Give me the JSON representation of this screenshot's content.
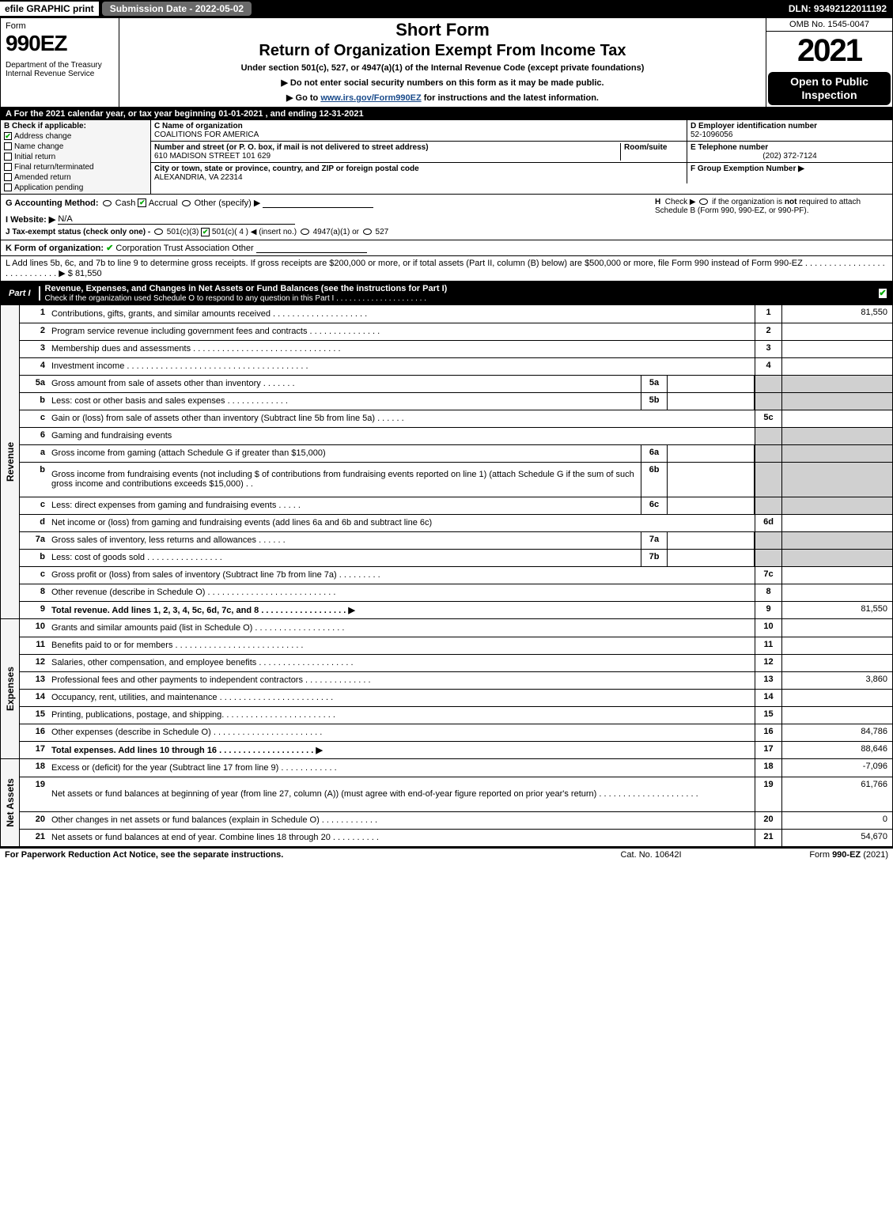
{
  "topbar": {
    "efile": "efile GRAPHIC print",
    "subdate": "Submission Date - 2022-05-02",
    "dln": "DLN: 93492122011192"
  },
  "header": {
    "form_label": "Form",
    "form_num": "990EZ",
    "dept": "Department of the Treasury\nInternal Revenue Service",
    "shortform": "Short Form",
    "title2": "Return of Organization Exempt From Income Tax",
    "subtitle": "Under section 501(c), 527, or 4947(a)(1) of the Internal Revenue Code (except private foundations)",
    "arrow1": "▶ Do not enter social security numbers on this form as it may be made public.",
    "arrow2_pre": "▶ Go to ",
    "arrow2_link": "www.irs.gov/Form990EZ",
    "arrow2_post": " for instructions and the latest information.",
    "omb": "OMB No. 1545-0047",
    "year": "2021",
    "open": "Open to Public Inspection"
  },
  "row_a": "A  For the 2021 calendar year, or tax year beginning 01-01-2021 , and ending 12-31-2021",
  "col_b": {
    "head": "B  Check if applicable:",
    "items": [
      "Address change",
      "Name change",
      "Initial return",
      "Final return/terminated",
      "Amended return",
      "Application pending"
    ],
    "checked_idx": 0
  },
  "col_c": {
    "name_lab": "C Name of organization",
    "name": "COALITIONS FOR AMERICA",
    "addr_lab": "Number and street (or P. O. box, if mail is not delivered to street address)",
    "room_lab": "Room/suite",
    "addr": "610 MADISON STREET 101 629",
    "city_lab": "City or town, state or province, country, and ZIP or foreign postal code",
    "city": "ALEXANDRIA, VA  22314"
  },
  "col_de": {
    "d_lab": "D Employer identification number",
    "d_val": "52-1096056",
    "e_lab": "E Telephone number",
    "e_val": "(202) 372-7124",
    "f_lab": "F Group Exemption Number  ▶"
  },
  "row_g": {
    "g_lab": "G Accounting Method:",
    "g_opts": [
      "Cash",
      "Accrual",
      "Other (specify) ▶"
    ],
    "g_checked": 1,
    "h_text": "H  Check ▶       if the organization is not required to attach Schedule B (Form 990, 990-EZ, or 990-PF)."
  },
  "row_i": {
    "lab": "I Website: ▶",
    "val": "N/A"
  },
  "row_j": {
    "lab": "J Tax-exempt status (check only one) - ",
    "opts": [
      "501(c)(3)",
      "501(c)( 4 ) ◀ (insert no.)",
      "4947(a)(1) or",
      "527"
    ],
    "checked": 1
  },
  "row_k": {
    "lab": "K Form of organization:",
    "opts": [
      "Corporation",
      "Trust",
      "Association",
      "Other"
    ],
    "checked": 0
  },
  "row_l": {
    "text": "L Add lines 5b, 6c, and 7b to line 9 to determine gross receipts. If gross receipts are $200,000 or more, or if total assets (Part II, column (B) below) are $500,000 or more, file Form 990 instead of Form 990-EZ  . . . . . . . . . . . . . . . . . . . . . . . . . . . .  ▶ $",
    "val": "81,550"
  },
  "part1": {
    "tab": "Part I",
    "title": "Revenue, Expenses, and Changes in Net Assets or Fund Balances (see the instructions for Part I)",
    "sub": "Check if the organization used Schedule O to respond to any question in this Part I . . . . . . . . . . . . . . . . . . . . .",
    "checked": true
  },
  "side_labels": {
    "rev": "Revenue",
    "exp": "Expenses",
    "net": "Net Assets"
  },
  "revenue_lines": [
    {
      "n": "1",
      "t": "Contributions, gifts, grants, and similar amounts received . . . . . . . . . . . . . . . . . . . .",
      "rn": "1",
      "rv": "81,550"
    },
    {
      "n": "2",
      "t": "Program service revenue including government fees and contracts . . . . . . . . . . . . . . .",
      "rn": "2",
      "rv": ""
    },
    {
      "n": "3",
      "t": "Membership dues and assessments . . . . . . . . . . . . . . . . . . . . . . . . . . . . . . .",
      "rn": "3",
      "rv": ""
    },
    {
      "n": "4",
      "t": "Investment income . . . . . . . . . . . . . . . . . . . . . . . . . . . . . . . . . . . . . .",
      "rn": "4",
      "rv": ""
    },
    {
      "n": "5a",
      "t": "Gross amount from sale of assets other than inventory . . . . . . .",
      "sn": "5a",
      "sv": "",
      "shaded": true
    },
    {
      "n": "b",
      "t": "Less: cost or other basis and sales expenses . . . . . . . . . . . . .",
      "sn": "5b",
      "sv": "",
      "shaded": true
    },
    {
      "n": "c",
      "t": "Gain or (loss) from sale of assets other than inventory (Subtract line 5b from line 5a) . . . . . .",
      "rn": "5c",
      "rv": ""
    },
    {
      "n": "6",
      "t": "Gaming and fundraising events",
      "shaded": true,
      "nohr": true
    },
    {
      "n": "a",
      "t": "Gross income from gaming (attach Schedule G if greater than $15,000)",
      "sn": "6a",
      "sv": "",
      "shaded": true
    },
    {
      "n": "b",
      "t": "Gross income from fundraising events (not including $                    of contributions from fundraising events reported on line 1) (attach Schedule G if the sum of such gross income and contributions exceeds $15,000)   . .",
      "sn": "6b",
      "sv": "",
      "shaded": true,
      "tall": true
    },
    {
      "n": "c",
      "t": "Less: direct expenses from gaming and fundraising events  . . . . .",
      "sn": "6c",
      "sv": "",
      "shaded": true
    },
    {
      "n": "d",
      "t": "Net income or (loss) from gaming and fundraising events (add lines 6a and 6b and subtract line 6c)",
      "rn": "6d",
      "rv": ""
    },
    {
      "n": "7a",
      "t": "Gross sales of inventory, less returns and allowances . . . . . .",
      "sn": "7a",
      "sv": "",
      "shaded": true
    },
    {
      "n": "b",
      "t": "Less: cost of goods sold        . . . . . . . . . . . . . . . .",
      "sn": "7b",
      "sv": "",
      "shaded": true
    },
    {
      "n": "c",
      "t": "Gross profit or (loss) from sales of inventory (Subtract line 7b from line 7a) . . . . . . . . .",
      "rn": "7c",
      "rv": ""
    },
    {
      "n": "8",
      "t": "Other revenue (describe in Schedule O) . . . . . . . . . . . . . . . . . . . . . . . . . . .",
      "rn": "8",
      "rv": ""
    },
    {
      "n": "9",
      "t": "Total revenue. Add lines 1, 2, 3, 4, 5c, 6d, 7c, and 8  . . . . . . . . . . . . . . . . . .   ▶",
      "rn": "9",
      "rv": "81,550",
      "bold": true
    }
  ],
  "expense_lines": [
    {
      "n": "10",
      "t": "Grants and similar amounts paid (list in Schedule O) . . . . . . . . . . . . . . . . . . .",
      "rn": "10",
      "rv": ""
    },
    {
      "n": "11",
      "t": "Benefits paid to or for members     . . . . . . . . . . . . . . . . . . . . . . . . . . .",
      "rn": "11",
      "rv": ""
    },
    {
      "n": "12",
      "t": "Salaries, other compensation, and employee benefits . . . . . . . . . . . . . . . . . . . .",
      "rn": "12",
      "rv": ""
    },
    {
      "n": "13",
      "t": "Professional fees and other payments to independent contractors . . . . . . . . . . . . . .",
      "rn": "13",
      "rv": "3,860"
    },
    {
      "n": "14",
      "t": "Occupancy, rent, utilities, and maintenance . . . . . . . . . . . . . . . . . . . . . . . .",
      "rn": "14",
      "rv": ""
    },
    {
      "n": "15",
      "t": "Printing, publications, postage, and shipping. . . . . . . . . . . . . . . . . . . . . . . .",
      "rn": "15",
      "rv": ""
    },
    {
      "n": "16",
      "t": "Other expenses (describe in Schedule O)    . . . . . . . . . . . . . . . . . . . . . . .",
      "rn": "16",
      "rv": "84,786"
    },
    {
      "n": "17",
      "t": "Total expenses. Add lines 10 through 16     . . . . . . . . . . . . . . . . . . . .   ▶",
      "rn": "17",
      "rv": "88,646",
      "bold": true
    }
  ],
  "net_lines": [
    {
      "n": "18",
      "t": "Excess or (deficit) for the year (Subtract line 17 from line 9)      . . . . . . . . . . . .",
      "rn": "18",
      "rv": "-7,096"
    },
    {
      "n": "19",
      "t": "Net assets or fund balances at beginning of year (from line 27, column (A)) (must agree with end-of-year figure reported on prior year's return) . . . . . . . . . . . . . . . . . . . . .",
      "rn": "19",
      "rv": "61,766",
      "tall": true
    },
    {
      "n": "20",
      "t": "Other changes in net assets or fund balances (explain in Schedule O) . . . . . . . . . . . .",
      "rn": "20",
      "rv": "0"
    },
    {
      "n": "21",
      "t": "Net assets or fund balances at end of year. Combine lines 18 through 20 . . . . . . . . . .",
      "rn": "21",
      "rv": "54,670"
    }
  ],
  "footer": {
    "l": "For Paperwork Reduction Act Notice, see the separate instructions.",
    "c": "Cat. No. 10642I",
    "r": "Form 990-EZ (2021)"
  }
}
